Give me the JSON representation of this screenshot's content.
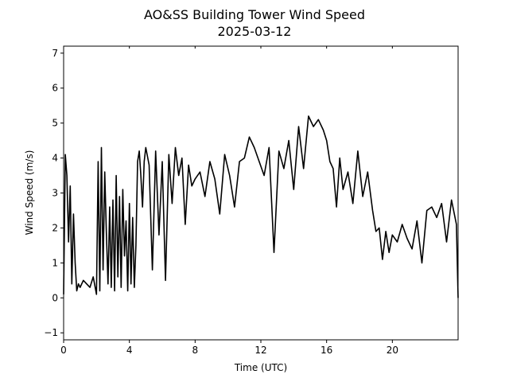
{
  "chart_data": {
    "type": "line",
    "title": "AO&SS Building Tower Wind Speed",
    "subtitle": "2025-03-12",
    "xlabel": "Time (UTC)",
    "ylabel": "Wind Speed (m/s)",
    "xlim": [
      0,
      24
    ],
    "ylim": [
      -1.2,
      7.2
    ],
    "x_ticks": [
      0,
      4,
      8,
      12,
      16,
      20
    ],
    "x_tick_labels": [
      "0",
      "4",
      "8",
      "12",
      "16",
      "20"
    ],
    "y_ticks": [
      -1,
      0,
      1,
      2,
      3,
      4,
      5,
      6,
      7
    ],
    "y_tick_labels": [
      "−1",
      "0",
      "1",
      "2",
      "3",
      "4",
      "5",
      "6",
      "7"
    ],
    "grid": false,
    "line_color": "#000000",
    "series": [
      {
        "x": [
          0.0,
          0.1,
          0.2,
          0.3,
          0.4,
          0.5,
          0.6,
          0.7,
          0.8,
          0.9,
          1.0,
          1.2,
          1.4,
          1.6,
          1.8,
          2.0,
          2.1,
          2.2,
          2.3,
          2.4,
          2.5,
          2.6,
          2.7,
          2.8,
          2.9,
          3.0,
          3.1,
          3.2,
          3.3,
          3.4,
          3.5,
          3.6,
          3.7,
          3.8,
          3.9,
          4.0,
          4.1,
          4.2,
          4.3,
          4.4,
          4.5,
          4.6,
          4.7,
          4.8,
          4.9,
          5.0,
          5.2,
          5.4,
          5.6,
          5.8,
          6.0,
          6.2,
          6.4,
          6.6,
          6.8,
          7.0,
          7.2,
          7.4,
          7.6,
          7.8,
          8.0,
          8.3,
          8.6,
          8.9,
          9.2,
          9.5,
          9.8,
          10.1,
          10.4,
          10.7,
          11.0,
          11.3,
          11.6,
          11.9,
          12.2,
          12.5,
          12.8,
          13.1,
          13.4,
          13.7,
          14.0,
          14.3,
          14.6,
          14.9,
          15.2,
          15.5,
          15.8,
          16.0,
          16.2,
          16.4,
          16.6,
          16.8,
          17.0,
          17.3,
          17.6,
          17.9,
          18.2,
          18.5,
          18.8,
          19.0,
          19.2,
          19.4,
          19.6,
          19.8,
          20.0,
          20.3,
          20.6,
          20.9,
          21.2,
          21.5,
          21.8,
          22.1,
          22.4,
          22.7,
          23.0,
          23.3,
          23.6,
          23.9,
          24.0
        ],
        "values": [
          0.1,
          4.1,
          3.5,
          1.6,
          3.2,
          0.4,
          2.4,
          1.0,
          0.2,
          0.4,
          0.3,
          0.5,
          0.4,
          0.3,
          0.6,
          0.1,
          3.9,
          0.2,
          4.3,
          0.8,
          3.6,
          1.9,
          0.4,
          2.6,
          0.3,
          2.8,
          0.2,
          3.5,
          0.6,
          2.9,
          0.3,
          3.1,
          1.2,
          2.2,
          0.2,
          2.7,
          0.4,
          2.3,
          0.3,
          1.5,
          3.9,
          4.2,
          3.5,
          2.6,
          3.9,
          4.3,
          3.8,
          0.8,
          4.2,
          1.8,
          3.9,
          0.5,
          4.1,
          2.7,
          4.3,
          3.5,
          4.0,
          2.1,
          3.8,
          3.2,
          3.4,
          3.6,
          2.9,
          3.9,
          3.4,
          2.4,
          4.1,
          3.5,
          2.6,
          3.9,
          4.0,
          4.6,
          4.3,
          3.9,
          3.5,
          4.3,
          1.3,
          4.2,
          3.7,
          4.5,
          3.1,
          4.9,
          3.7,
          5.2,
          4.9,
          5.1,
          4.8,
          4.5,
          3.9,
          3.7,
          2.6,
          4.0,
          3.1,
          3.6,
          2.7,
          4.2,
          2.9,
          3.6,
          2.5,
          1.9,
          2.0,
          1.1,
          1.9,
          1.3,
          1.8,
          1.6,
          2.1,
          1.7,
          1.4,
          2.2,
          1.0,
          2.5,
          2.6,
          2.3,
          2.7,
          1.6,
          2.8,
          2.1,
          0.0
        ]
      }
    ]
  }
}
